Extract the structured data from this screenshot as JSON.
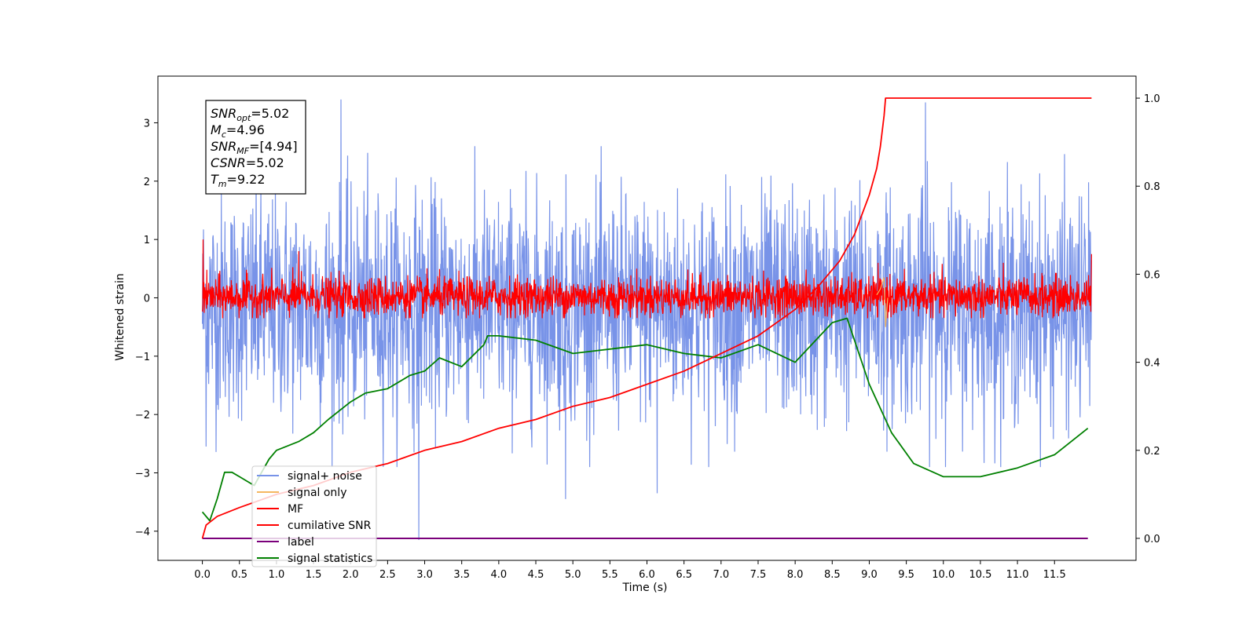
{
  "chart_data": {
    "type": "line",
    "xlabel": "Time (s)",
    "ylabel": "Whitened strain",
    "xlim": [
      -0.6,
      12.6
    ],
    "ylim_left": [
      -4.5,
      3.8
    ],
    "ylim_right": [
      -0.05,
      1.05
    ],
    "x_ticks": [
      "0.0",
      "0.5",
      "1.0",
      "1.5",
      "2.0",
      "2.5",
      "3.0",
      "3.5",
      "4.0",
      "4.5",
      "5.0",
      "5.5",
      "6.0",
      "6.5",
      "7.0",
      "7.5",
      "8.0",
      "8.5",
      "9.0",
      "9.5",
      "10.0",
      "10.5",
      "11.0",
      "11.5"
    ],
    "y_ticks_left": [
      "−4",
      "−3",
      "−2",
      "−1",
      "0",
      "1",
      "2",
      "3"
    ],
    "y_ticks_right": [
      "0.0",
      "0.2",
      "0.4",
      "0.6",
      "0.8",
      "1.0"
    ],
    "grid": false,
    "legend_position": "lower-left",
    "stats_box": {
      "snr_opt": {
        "sym": "SNR",
        "sub": "opt",
        "tail": "=5.02"
      },
      "mc": {
        "sym": "M",
        "sub": "c",
        "tail": "=4.96"
      },
      "snr_mf": {
        "sym": "SNR",
        "sub": "MF",
        "tail": "=[4.94]"
      },
      "csnr": {
        "sym": "CSNR",
        "sub": "",
        "tail": "=5.02"
      },
      "tm": {
        "sym": "T",
        "sub": "m",
        "tail": "=9.22"
      }
    },
    "series": [
      {
        "name": "signal+ noise",
        "color": "#7893e8",
        "axis": "left",
        "description_of_values": "noisy strain spanning the full time range",
        "x_range": [
          0.0,
          12.0
        ],
        "typical_range": [
          -2.5,
          2.0
        ],
        "extremes": [
          {
            "x": 1.87,
            "y": 3.4
          },
          {
            "x": 2.92,
            "y": -4.15
          },
          {
            "x": 4.9,
            "y": -3.45
          },
          {
            "x": 6.14,
            "y": -3.35
          },
          {
            "x": 9.76,
            "y": 3.35
          },
          {
            "x": 0.05,
            "y": -2.55
          }
        ]
      },
      {
        "name": "signal only",
        "color": "#f5b860",
        "axis": "left",
        "x": [
          9.1,
          9.15,
          9.2,
          9.22,
          9.25
        ],
        "y": [
          0.05,
          0.15,
          0.35,
          -0.5,
          0.0
        ]
      },
      {
        "name": "MF",
        "color": "#ff0000",
        "axis": "left",
        "x_range": [
          0.0,
          12.0
        ],
        "typical_range": [
          -0.35,
          0.6
        ],
        "extremes": [
          {
            "x": 0.01,
            "y": 1.0
          },
          {
            "x": 1.3,
            "y": 0.8
          },
          {
            "x": 12.0,
            "y": 0.75
          }
        ]
      },
      {
        "name": "cumilative SNR",
        "color": "#ff0000",
        "axis": "right",
        "x": [
          0.0,
          0.05,
          0.2,
          0.5,
          1.0,
          1.5,
          2.0,
          2.5,
          3.0,
          3.5,
          4.0,
          4.5,
          5.0,
          5.5,
          6.0,
          6.5,
          7.0,
          7.5,
          8.0,
          8.3,
          8.6,
          8.8,
          9.0,
          9.1,
          9.15,
          9.2,
          9.22,
          12.0
        ],
        "y": [
          0.0,
          0.03,
          0.05,
          0.07,
          0.1,
          0.12,
          0.15,
          0.17,
          0.2,
          0.22,
          0.25,
          0.27,
          0.3,
          0.32,
          0.35,
          0.38,
          0.42,
          0.46,
          0.52,
          0.57,
          0.63,
          0.69,
          0.78,
          0.84,
          0.89,
          0.96,
          1.0,
          1.0
        ]
      },
      {
        "name": "label",
        "color": "#7b007b",
        "axis": "right",
        "x": [
          0.0,
          11.95
        ],
        "y": [
          0.0,
          0.0
        ]
      },
      {
        "name": "signal statistics",
        "color": "#008000",
        "axis": "right",
        "x": [
          0.0,
          0.1,
          0.2,
          0.3,
          0.4,
          0.5,
          0.7,
          0.9,
          1.0,
          1.3,
          1.5,
          1.7,
          2.0,
          2.2,
          2.5,
          2.8,
          3.0,
          3.2,
          3.5,
          3.8,
          3.85,
          4.0,
          4.5,
          5.0,
          5.5,
          6.0,
          6.5,
          7.0,
          7.5,
          8.0,
          8.5,
          8.7,
          9.0,
          9.3,
          9.6,
          10.0,
          10.5,
          11.0,
          11.5,
          11.95
        ],
        "y": [
          0.06,
          0.04,
          0.09,
          0.15,
          0.15,
          0.14,
          0.12,
          0.18,
          0.2,
          0.22,
          0.24,
          0.27,
          0.31,
          0.33,
          0.34,
          0.37,
          0.38,
          0.41,
          0.39,
          0.44,
          0.46,
          0.46,
          0.45,
          0.42,
          0.43,
          0.44,
          0.42,
          0.41,
          0.44,
          0.4,
          0.49,
          0.5,
          0.35,
          0.24,
          0.17,
          0.14,
          0.14,
          0.16,
          0.19,
          0.25
        ]
      }
    ]
  }
}
